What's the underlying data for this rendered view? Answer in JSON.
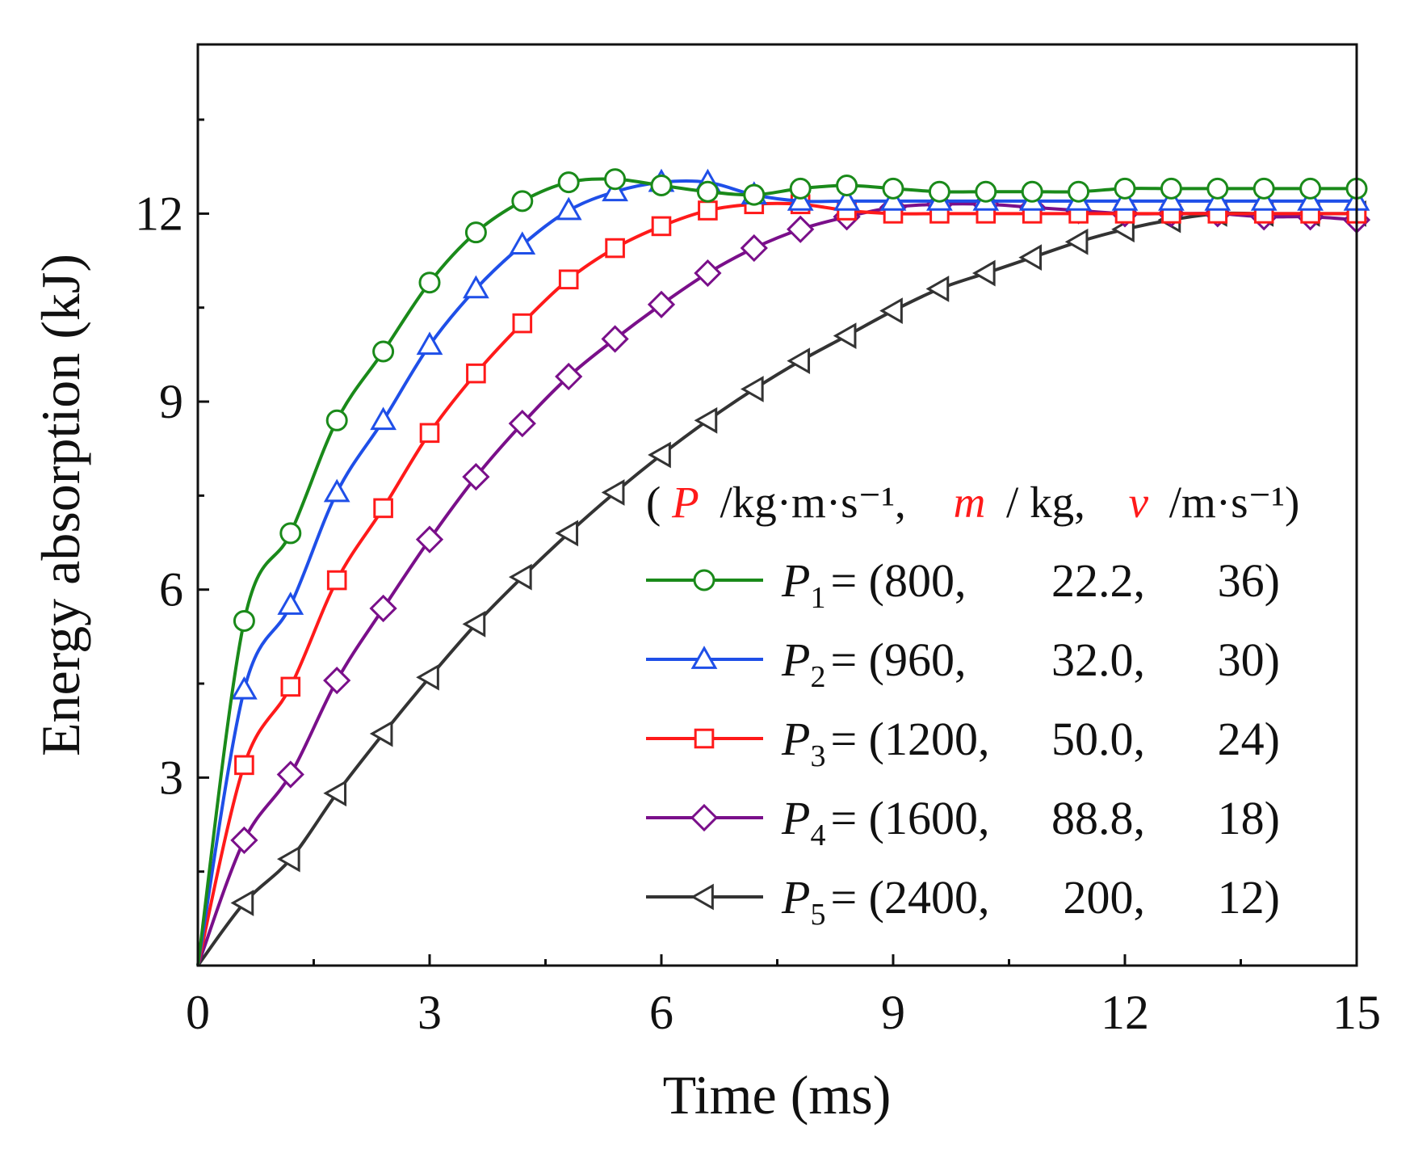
{
  "chart_data": {
    "type": "line",
    "title": "",
    "xlabel": "Time (ms)",
    "ylabel": "Energy absorption (kJ)",
    "xlim": [
      0,
      15
    ],
    "ylim": [
      0,
      14.7
    ],
    "xticks": [
      0,
      3,
      6,
      9,
      12,
      15
    ],
    "yticks": [
      3,
      6,
      9,
      12
    ],
    "x_tick_labels": [
      "0",
      "3",
      "6",
      "9",
      "12",
      "15"
    ],
    "y_tick_labels": [
      "3",
      "6",
      "9",
      "12"
    ],
    "grid": false,
    "legend_position": "center-right",
    "legend_header": {
      "P_symbol": "P",
      "P_unit": "/kg·m·s⁻¹,",
      "m_symbol": "m",
      "m_unit": "/ kg,",
      "v_symbol": "v",
      "v_unit": "/m·s⁻¹)",
      "open_paren": "("
    },
    "x": [
      0,
      0.6,
      1.2,
      1.8,
      2.4,
      3.0,
      3.6,
      4.2,
      4.8,
      5.4,
      6.0,
      6.6,
      7.2,
      7.8,
      8.4,
      9.0,
      9.6,
      10.2,
      10.8,
      11.4,
      12.0,
      12.6,
      13.2,
      13.8,
      14.4,
      15.0
    ],
    "series": [
      {
        "name": "P1",
        "label_symbol": "P",
        "label_sub": "1",
        "label_text": "= (800,",
        "label_m": "22.2,",
        "label_v": "36)",
        "color": "#1a8a1a",
        "marker": "circle",
        "values": [
          0,
          5.5,
          6.9,
          8.7,
          9.8,
          10.9,
          11.7,
          12.2,
          12.5,
          12.55,
          12.45,
          12.35,
          12.3,
          12.4,
          12.45,
          12.4,
          12.35,
          12.35,
          12.35,
          12.35,
          12.4,
          12.4,
          12.4,
          12.4,
          12.4,
          12.4
        ]
      },
      {
        "name": "P2",
        "label_symbol": "P",
        "label_sub": "2",
        "label_text": "= (960,",
        "label_m": "32.0,",
        "label_v": "30)",
        "color": "#1f4fe8",
        "marker": "triangle-up",
        "values": [
          0,
          4.4,
          5.75,
          7.55,
          8.7,
          9.9,
          10.8,
          11.5,
          12.05,
          12.35,
          12.5,
          12.5,
          12.3,
          12.2,
          12.2,
          12.2,
          12.2,
          12.2,
          12.2,
          12.2,
          12.2,
          12.2,
          12.2,
          12.2,
          12.2,
          12.2
        ]
      },
      {
        "name": "P3",
        "label_symbol": "P",
        "label_sub": "3",
        "label_text": "= (1200,",
        "label_m": "50.0,",
        "label_v": "24)",
        "color": "#ff1a1a",
        "marker": "square",
        "values": [
          0,
          3.2,
          4.45,
          6.15,
          7.3,
          8.5,
          9.45,
          10.25,
          10.95,
          11.45,
          11.8,
          12.05,
          12.15,
          12.15,
          12.05,
          12.0,
          12.0,
          12.0,
          12.0,
          12.0,
          12.0,
          12.0,
          12.0,
          12.0,
          12.0,
          12.0
        ]
      },
      {
        "name": "P4",
        "label_symbol": "P",
        "label_sub": "4",
        "label_text": "= (1600,",
        "label_m": "88.8,",
        "label_v": "18)",
        "color": "#7a0f8a",
        "marker": "diamond",
        "values": [
          0,
          2.0,
          3.05,
          4.55,
          5.7,
          6.8,
          7.8,
          8.65,
          9.4,
          10.0,
          10.55,
          11.05,
          11.45,
          11.75,
          11.95,
          12.1,
          12.15,
          12.15,
          12.1,
          12.05,
          12.0,
          12.0,
          12.0,
          11.95,
          11.95,
          11.9
        ]
      },
      {
        "name": "P5",
        "label_symbol": "P",
        "label_sub": "5",
        "label_text": "= (2400,",
        "label_m": "200,",
        "label_v": "12)",
        "color": "#333333",
        "marker": "triangle-left",
        "values": [
          0,
          1.0,
          1.7,
          2.75,
          3.7,
          4.6,
          5.45,
          6.2,
          6.9,
          7.55,
          8.15,
          8.7,
          9.2,
          9.65,
          10.05,
          10.45,
          10.8,
          11.05,
          11.3,
          11.55,
          11.75,
          11.9,
          12.0,
          12.0,
          12.0,
          12.0
        ]
      }
    ]
  }
}
